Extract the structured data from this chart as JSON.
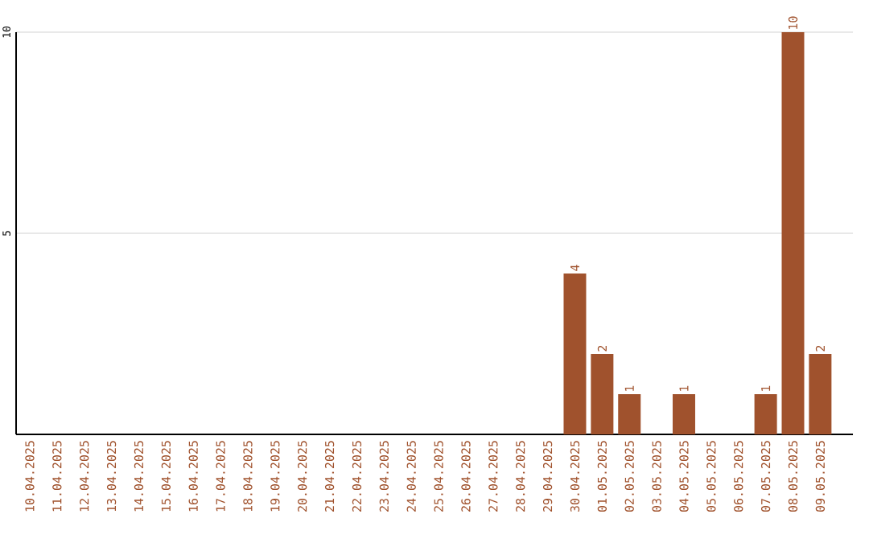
{
  "chart_data": {
    "type": "bar",
    "categories": [
      "10.04.2025",
      "11.04.2025",
      "12.04.2025",
      "13.04.2025",
      "14.04.2025",
      "15.04.2025",
      "16.04.2025",
      "17.04.2025",
      "18.04.2025",
      "19.04.2025",
      "20.04.2025",
      "21.04.2025",
      "22.04.2025",
      "23.04.2025",
      "24.04.2025",
      "25.04.2025",
      "26.04.2025",
      "27.04.2025",
      "28.04.2025",
      "29.04.2025",
      "30.04.2025",
      "01.05.2025",
      "02.05.2025",
      "03.05.2025",
      "04.05.2025",
      "05.05.2025",
      "06.05.2025",
      "07.05.2025",
      "08.05.2025",
      "09.05.2025"
    ],
    "values": [
      0,
      0,
      0,
      0,
      0,
      0,
      0,
      0,
      0,
      0,
      0,
      0,
      0,
      0,
      0,
      0,
      0,
      0,
      0,
      0,
      4,
      2,
      1,
      0,
      1,
      0,
      0,
      1,
      10,
      2
    ],
    "value_labels": [
      null,
      null,
      null,
      null,
      null,
      null,
      null,
      null,
      null,
      null,
      null,
      null,
      null,
      null,
      null,
      null,
      null,
      null,
      null,
      null,
      "4",
      "2",
      "1",
      null,
      "1",
      null,
      null,
      "1",
      "10",
      "2"
    ],
    "color": "#a0522d",
    "ylim": [
      0,
      10
    ],
    "yticks": [
      5,
      10
    ],
    "grid": "y"
  }
}
